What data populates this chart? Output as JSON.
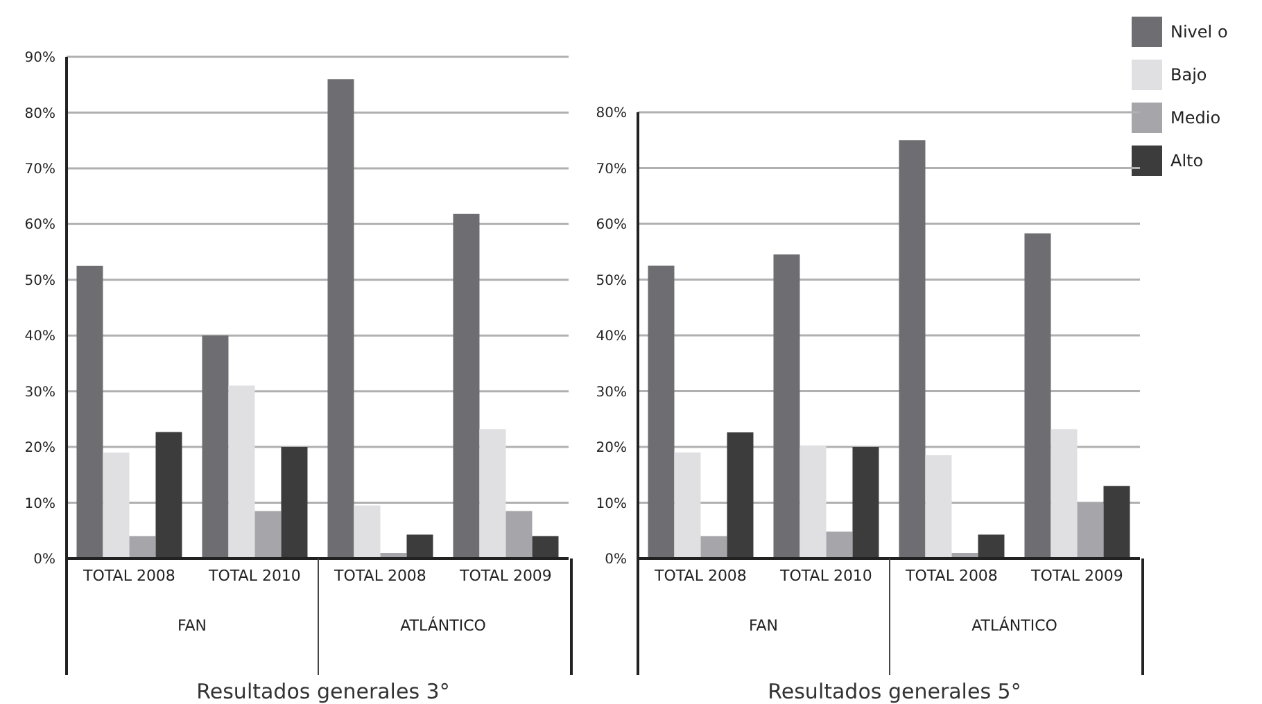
{
  "chart_data": [
    {
      "type": "bar",
      "title": "Resultados generales 3°",
      "categories": [
        "TOTAL 2008",
        "TOTAL 2010",
        "TOTAL 2008",
        "TOTAL 2009"
      ],
      "annotations": [
        "FAN",
        "ATLÁNTICO"
      ],
      "series": [
        {
          "name": "Nivel o",
          "color": "#6e6e72",
          "values": [
            52.5,
            40,
            86,
            61.8
          ]
        },
        {
          "name": "Bajo",
          "color": "#e0e0e2",
          "values": [
            19,
            31,
            9.5,
            23.2
          ]
        },
        {
          "name": "Medio",
          "color": "#a6a6aa",
          "values": [
            4,
            8.5,
            1,
            8.5
          ]
        },
        {
          "name": "Alto",
          "color": "#3c3c3c",
          "values": [
            22.7,
            20,
            4.3,
            4
          ]
        }
      ],
      "ylim": [
        0,
        90
      ],
      "yticks": [
        {
          "value": 0,
          "label": "0%"
        },
        {
          "value": 10,
          "label": "10%"
        },
        {
          "value": 20,
          "label": "20%"
        },
        {
          "value": 30,
          "label": "30%"
        },
        {
          "value": 40,
          "label": "40%"
        },
        {
          "value": 50,
          "label": "50%"
        },
        {
          "value": 60,
          "label": "60%"
        },
        {
          "value": 70,
          "label": "70%"
        },
        {
          "value": 80,
          "label": "80%"
        },
        {
          "value": 90,
          "label": "90%"
        }
      ],
      "grid": "y",
      "legend": "top right"
    },
    {
      "type": "bar",
      "title": "Resultados generales 5°",
      "categories": [
        "TOTAL 2008",
        "TOTAL 2010",
        "TOTAL 2008",
        "TOTAL 2009"
      ],
      "annotations": [
        "FAN",
        "ATLÁNTICO"
      ],
      "series": [
        {
          "name": "Nivel o",
          "color": "#6e6e72",
          "values": [
            52.5,
            54.5,
            75,
            58.3
          ]
        },
        {
          "name": "Bajo",
          "color": "#e0e0e2",
          "values": [
            19,
            20.2,
            18.5,
            23.2
          ]
        },
        {
          "name": "Medio",
          "color": "#a6a6aa",
          "values": [
            4,
            4.8,
            1,
            10
          ]
        },
        {
          "name": "Alto",
          "color": "#3c3c3c",
          "values": [
            22.6,
            20,
            4.3,
            13
          ]
        }
      ],
      "ylim": [
        0,
        80
      ],
      "yticks": [
        {
          "value": 0,
          "label": "0%"
        },
        {
          "value": 10,
          "label": "10%"
        },
        {
          "value": 20,
          "label": "20%"
        },
        {
          "value": 30,
          "label": "30%"
        },
        {
          "value": 40,
          "label": "40%"
        },
        {
          "value": 50,
          "label": "50%"
        },
        {
          "value": 60,
          "label": "60%"
        },
        {
          "value": 70,
          "label": "70%"
        },
        {
          "value": 80,
          "label": "80%"
        }
      ],
      "grid": "y",
      "legend": "top right"
    }
  ]
}
